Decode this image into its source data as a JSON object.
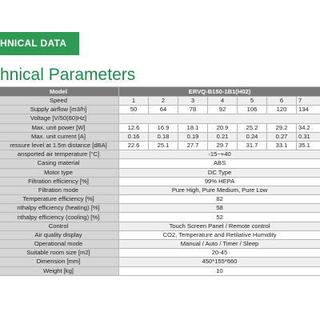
{
  "section": {
    "title": "HNICAL DATA"
  },
  "page_title": "hnical Parameters",
  "table": {
    "model_label": "Model",
    "model_value": "ERVQ-B150-1B1(H02)",
    "rows": [
      {
        "label": "Speed",
        "values": [
          "1",
          "2",
          "3",
          "4",
          "5",
          "6",
          "7"
        ]
      },
      {
        "label": "Supply airflow [m3/h]",
        "values": [
          "50",
          "64",
          "78",
          "92",
          "106",
          "120",
          "134"
        ]
      },
      {
        "label": "Voltage [V/50(60)Hz]",
        "values": []
      },
      {
        "label": "Max. unit power [W]",
        "values": [
          "12.6",
          "16.9",
          "18.1",
          "20.9",
          "25.2",
          "29.2",
          "34.2"
        ]
      },
      {
        "label": "Max. unit current [A]",
        "values": [
          "0.16",
          "0.18",
          "0.19",
          "0.21",
          "0.24",
          "0.27",
          "0.31"
        ]
      },
      {
        "label": "ressure level at 1.5m distance [dBA]",
        "values": [
          "22.6",
          "25.1",
          "27.7",
          "29.7",
          "31.7",
          "33.1",
          "35.1"
        ]
      },
      {
        "label": "ansported air temperature [°C]",
        "span": "-15~+40"
      },
      {
        "label": "Casing material",
        "span": "ABS"
      },
      {
        "label": "Motor type",
        "span": "DC Type"
      },
      {
        "label": "Filtration efficiency [%]",
        "span": "99% HEPA"
      },
      {
        "label": "Filtration mode",
        "span": "Pure High, Pure Medium, Pure Low"
      },
      {
        "label": "Temperature efficiency [%]",
        "span": "82"
      },
      {
        "label": "nthalpy efficiency (heating) [%]",
        "span": "58"
      },
      {
        "label": "nthalpy efficiency (cooling) [%]",
        "span": "52"
      },
      {
        "label": "Control",
        "span": "Touch Screen Panel / Remote control"
      },
      {
        "label": "Air quality display",
        "span": "CO2, Temperature and Retilative Humidity"
      },
      {
        "label": "Operational mode",
        "span": "Manual / Auto / Timer / Sleep"
      },
      {
        "label": "Suitable room size [m2]",
        "span": "20-45"
      },
      {
        "label": "Dimension [mm]",
        "span": "450*155*660"
      },
      {
        "label": "Weight [kg]",
        "span": "10"
      }
    ]
  }
}
